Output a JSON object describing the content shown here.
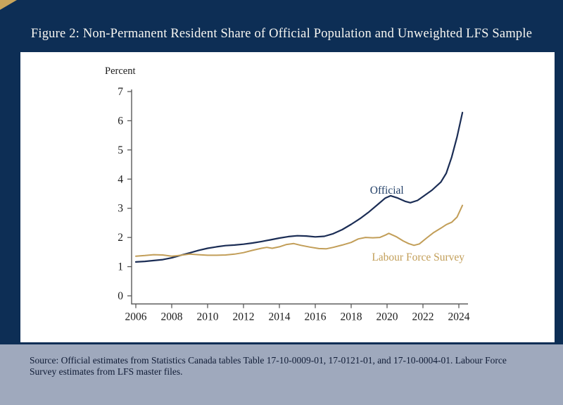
{
  "title": "Figure 2: Non-Permanent Resident Share of Official Population and Unweighted LFS Sample",
  "source_lines": [
    "Source: Official estimates from Statistics Canada tables Table 17-10-0009-01, 17-0121-01, and 17-10-0004-01. Labour Force",
    "Survey estimates from LFS master files."
  ],
  "colors": {
    "background_navy": "#0d2e55",
    "corner_gold": "#c9a55c",
    "official_line": "#1b2d55",
    "lfs_line": "#c29e58",
    "footer_band": "#9fa9bd",
    "axis_gray": "#5a5a5a"
  },
  "chart_data": {
    "type": "line",
    "ylabel": "Percent",
    "xlabel": "",
    "xlim": [
      2005.8,
      2024.7
    ],
    "ylim": [
      0,
      7
    ],
    "grid": false,
    "legend_position": "inline-annotations",
    "xticks": [
      2006,
      2008,
      2010,
      2012,
      2014,
      2016,
      2018,
      2020,
      2022,
      2024
    ],
    "yticks": [
      0,
      1,
      2,
      3,
      4,
      5,
      6,
      7
    ],
    "series": [
      {
        "name": "Official",
        "color": "#1b2d55",
        "width": 2.2,
        "data": [
          [
            2006.0,
            1.16
          ],
          [
            2006.5,
            1.18
          ],
          [
            2007.0,
            1.21
          ],
          [
            2007.5,
            1.24
          ],
          [
            2008.0,
            1.3
          ],
          [
            2008.5,
            1.39
          ],
          [
            2009.0,
            1.47
          ],
          [
            2009.5,
            1.56
          ],
          [
            2010.0,
            1.63
          ],
          [
            2010.5,
            1.68
          ],
          [
            2011.0,
            1.72
          ],
          [
            2011.5,
            1.74
          ],
          [
            2012.0,
            1.77
          ],
          [
            2012.5,
            1.81
          ],
          [
            2013.0,
            1.86
          ],
          [
            2013.5,
            1.92
          ],
          [
            2014.0,
            1.98
          ],
          [
            2014.5,
            2.03
          ],
          [
            2015.0,
            2.06
          ],
          [
            2015.5,
            2.05
          ],
          [
            2016.0,
            2.02
          ],
          [
            2016.5,
            2.04
          ],
          [
            2017.0,
            2.13
          ],
          [
            2017.5,
            2.27
          ],
          [
            2018.0,
            2.45
          ],
          [
            2018.5,
            2.65
          ],
          [
            2019.0,
            2.88
          ],
          [
            2019.5,
            3.14
          ],
          [
            2019.9,
            3.35
          ],
          [
            2020.2,
            3.43
          ],
          [
            2020.6,
            3.35
          ],
          [
            2021.0,
            3.24
          ],
          [
            2021.3,
            3.19
          ],
          [
            2021.7,
            3.27
          ],
          [
            2022.0,
            3.4
          ],
          [
            2022.5,
            3.62
          ],
          [
            2023.0,
            3.9
          ],
          [
            2023.3,
            4.2
          ],
          [
            2023.6,
            4.75
          ],
          [
            2023.9,
            5.45
          ],
          [
            2024.2,
            6.28
          ]
        ]
      },
      {
        "name": "Labour Force Survey",
        "color": "#c29e58",
        "width": 2,
        "data": [
          [
            2006.0,
            1.36
          ],
          [
            2006.5,
            1.38
          ],
          [
            2007.0,
            1.41
          ],
          [
            2007.5,
            1.4
          ],
          [
            2008.0,
            1.36
          ],
          [
            2008.5,
            1.39
          ],
          [
            2009.0,
            1.43
          ],
          [
            2009.5,
            1.41
          ],
          [
            2010.0,
            1.39
          ],
          [
            2010.5,
            1.39
          ],
          [
            2011.0,
            1.4
          ],
          [
            2011.5,
            1.43
          ],
          [
            2012.0,
            1.48
          ],
          [
            2012.5,
            1.56
          ],
          [
            2013.0,
            1.63
          ],
          [
            2013.3,
            1.66
          ],
          [
            2013.6,
            1.63
          ],
          [
            2014.0,
            1.68
          ],
          [
            2014.4,
            1.76
          ],
          [
            2014.8,
            1.79
          ],
          [
            2015.2,
            1.73
          ],
          [
            2015.7,
            1.67
          ],
          [
            2016.2,
            1.62
          ],
          [
            2016.6,
            1.61
          ],
          [
            2017.0,
            1.66
          ],
          [
            2017.5,
            1.74
          ],
          [
            2018.0,
            1.83
          ],
          [
            2018.4,
            1.95
          ],
          [
            2018.8,
            2.0
          ],
          [
            2019.2,
            1.99
          ],
          [
            2019.6,
            2.0
          ],
          [
            2019.9,
            2.08
          ],
          [
            2020.1,
            2.14
          ],
          [
            2020.5,
            2.03
          ],
          [
            2020.9,
            1.88
          ],
          [
            2021.2,
            1.79
          ],
          [
            2021.5,
            1.73
          ],
          [
            2021.8,
            1.78
          ],
          [
            2022.2,
            1.98
          ],
          [
            2022.6,
            2.17
          ],
          [
            2023.0,
            2.32
          ],
          [
            2023.3,
            2.44
          ],
          [
            2023.6,
            2.52
          ],
          [
            2023.9,
            2.7
          ],
          [
            2024.2,
            3.1
          ]
        ]
      }
    ],
    "annotations": [
      {
        "text": "Official",
        "x": 2019.05,
        "y": 3.5,
        "color": "#234068",
        "anchor": "start"
      },
      {
        "text": "Labour Force Survey",
        "x": 2019.15,
        "y": 1.21,
        "color": "#c29e58",
        "anchor": "start"
      }
    ]
  }
}
